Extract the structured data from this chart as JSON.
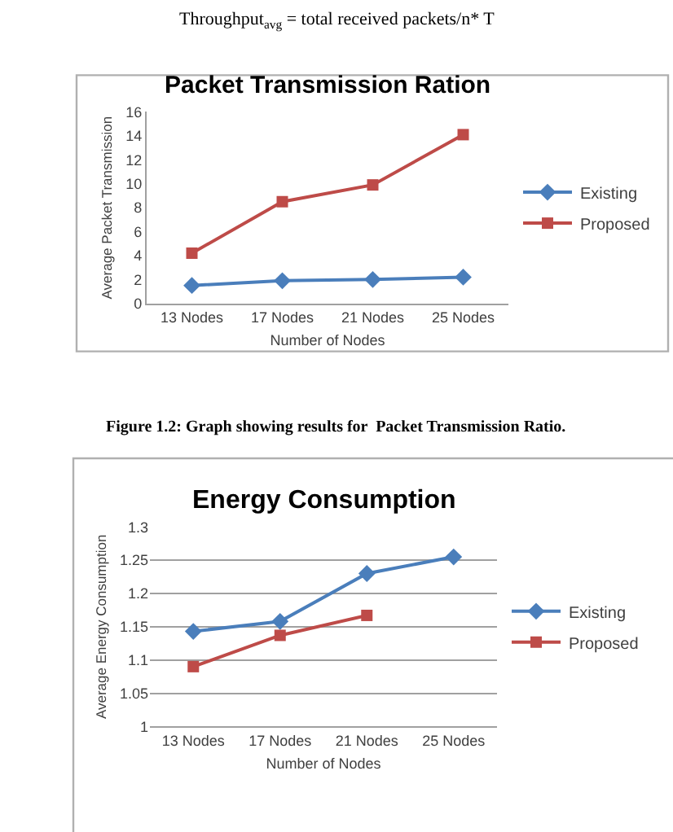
{
  "chart_data": [
    {
      "type": "line",
      "title": "Packet Transmission Ration",
      "xlabel": "Number of Nodes",
      "ylabel": "Average Packet Transmission",
      "categories": [
        "13 Nodes",
        "17 Nodes",
        "21 Nodes",
        "25 Nodes"
      ],
      "series": [
        {
          "name": "Existing",
          "color": "#4a7ebb",
          "marker": "diamond",
          "values": [
            1.5,
            1.9,
            2.0,
            2.2
          ]
        },
        {
          "name": "Proposed",
          "color": "#be4b48",
          "marker": "square",
          "values": [
            4.2,
            8.5,
            9.9,
            14.1
          ]
        }
      ],
      "ylim": [
        0,
        16
      ],
      "yticks": [
        0,
        2,
        4,
        6,
        8,
        10,
        12,
        14,
        16
      ],
      "grid": false,
      "legend": "right",
      "annotations": [
        "Throughput$_{avg}$ = total received packets/n* T",
        "Figure 1.2: Graph showing results for  Packet Transmission Ratio."
      ]
    },
    {
      "type": "line",
      "title": "Energy Consumption",
      "xlabel": "Number of Nodes",
      "ylabel": "Average Energy Consumption",
      "categories": [
        "13 Nodes",
        "17 Nodes",
        "21 Nodes",
        "25 Nodes"
      ],
      "series": [
        {
          "name": "Existing",
          "color": "#4a7ebb",
          "marker": "diamond",
          "values": [
            1.143,
            1.158,
            1.23,
            1.255
          ]
        },
        {
          "name": "Proposed",
          "color": "#be4b48",
          "marker": "square",
          "values": [
            1.09,
            1.137,
            1.167,
            null
          ]
        }
      ],
      "ylim": [
        1,
        1.3
      ],
      "yticks": [
        1,
        1.05,
        1.1,
        1.15,
        1.2,
        1.25,
        1.3
      ],
      "grid": "y",
      "legend": "right"
    }
  ]
}
